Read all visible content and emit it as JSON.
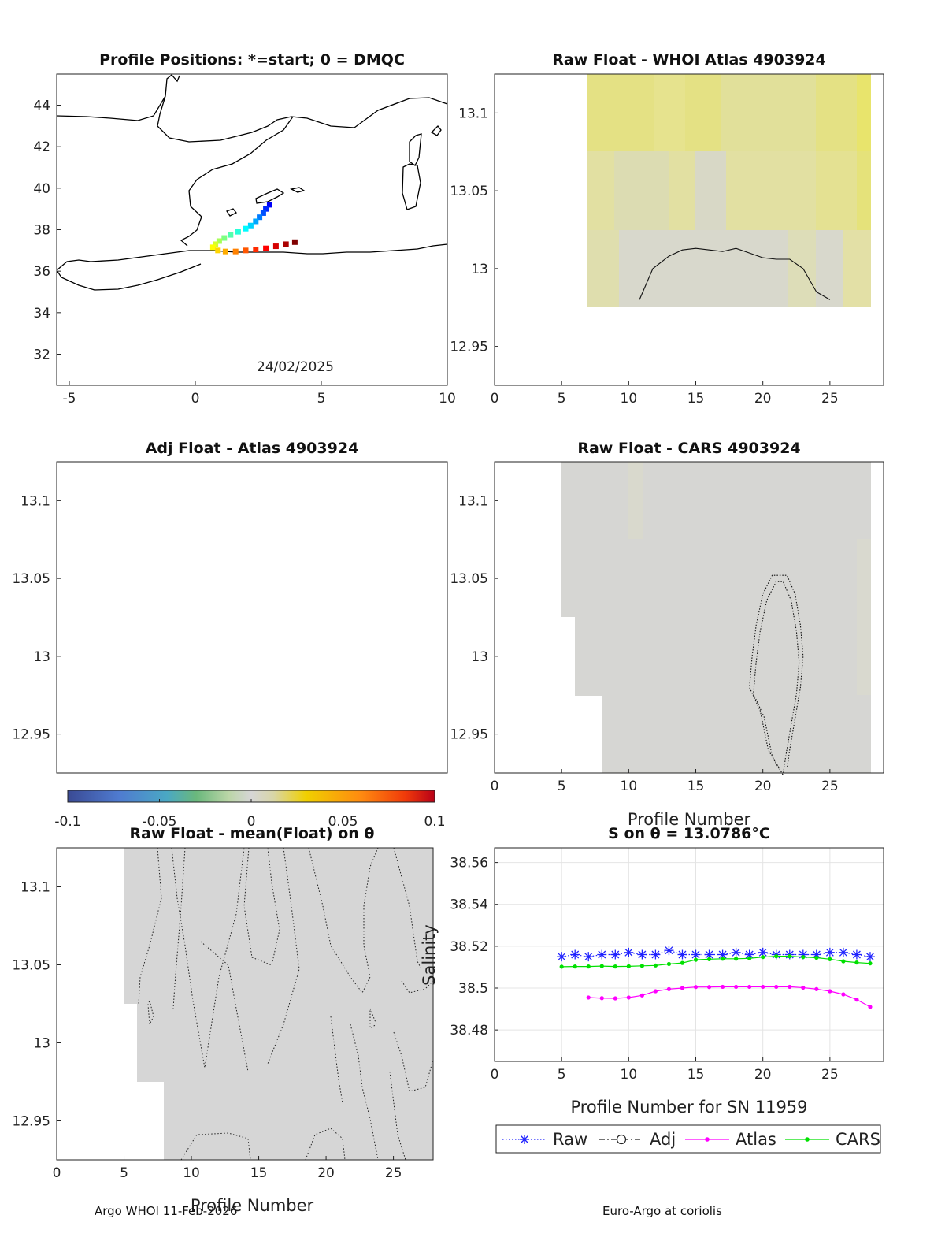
{
  "footer": {
    "left": "Argo WHOI 11-Feb-2026",
    "right": "Euro-Argo at coriolis"
  },
  "chart_data": [
    {
      "id": "positions",
      "type": "scatter",
      "title": "Profile Positions: *=start; 0 = DMQC",
      "annotation": "24/02/2025",
      "xlim": [
        -5.5,
        10
      ],
      "ylim": [
        30.5,
        45.5
      ],
      "xticks": [
        "-5",
        "0",
        "5",
        "10"
      ],
      "xtick_values": [
        -5,
        0,
        5,
        10
      ],
      "yticks": [
        "32",
        "34",
        "36",
        "38",
        "40",
        "42",
        "44"
      ],
      "ytick_values": [
        32,
        34,
        36,
        38,
        40,
        42,
        44
      ],
      "points": [
        [
          2.95,
          39.2
        ],
        [
          2.8,
          39.0
        ],
        [
          2.7,
          38.8
        ],
        [
          2.55,
          38.6
        ],
        [
          2.4,
          38.4
        ],
        [
          2.2,
          38.2
        ],
        [
          2.0,
          38.05
        ],
        [
          1.7,
          37.9
        ],
        [
          1.4,
          37.75
        ],
        [
          1.15,
          37.6
        ],
        [
          0.95,
          37.45
        ],
        [
          0.8,
          37.3
        ],
        [
          0.7,
          37.15
        ],
        [
          0.9,
          37.0
        ],
        [
          1.2,
          36.95
        ],
        [
          1.6,
          36.95
        ],
        [
          2.0,
          37.0
        ],
        [
          2.4,
          37.05
        ],
        [
          2.8,
          37.1
        ],
        [
          3.2,
          37.2
        ],
        [
          3.6,
          37.3
        ],
        [
          3.95,
          37.4
        ]
      ]
    },
    {
      "id": "raw-whoi",
      "type": "heatmap",
      "title": "Raw Float - WHOI Atlas  4903924",
      "xlim": [
        0,
        29
      ],
      "ylim": [
        12.925,
        13.125
      ],
      "xticks": [
        "0",
        "5",
        "10",
        "15",
        "20",
        "25"
      ],
      "xtick_values": [
        0,
        5,
        10,
        15,
        20,
        25
      ],
      "yticks": [
        "13.1",
        "13.05",
        "13",
        "12.95"
      ],
      "ytick_values": [
        13.1,
        13.05,
        13.0,
        12.95
      ],
      "contour": [
        [
          10.8,
          12.98
        ],
        [
          11.8,
          13.0
        ],
        [
          13,
          13.008
        ],
        [
          14,
          13.012
        ],
        [
          15,
          13.013
        ],
        [
          16,
          13.012
        ],
        [
          17,
          13.011
        ],
        [
          18,
          13.013
        ],
        [
          19,
          13.01
        ],
        [
          20,
          13.007
        ],
        [
          21,
          13.006
        ],
        [
          22,
          13.006
        ],
        [
          23,
          13.0
        ],
        [
          24,
          12.985
        ],
        [
          25,
          12.98
        ]
      ]
    },
    {
      "id": "adj-atlas",
      "type": "heatmap",
      "title": "Adj Float - Atlas  4903924",
      "ylim": [
        12.925,
        13.125
      ],
      "yticks": [
        "13.1",
        "13.05",
        "13",
        "12.95"
      ],
      "ytick_values": [
        13.1,
        13.05,
        13.0,
        12.95
      ],
      "colorbar": {
        "range": [
          -0.1,
          0.1
        ],
        "ticks": [
          "-0.1",
          "-0.05",
          "0",
          "0.05",
          "0.1"
        ],
        "tick_values": [
          -0.1,
          -0.05,
          0,
          0.05,
          0.1
        ]
      }
    },
    {
      "id": "raw-cars",
      "type": "heatmap",
      "title": "Raw Float - CARS  4903924",
      "xlabel": "Profile Number",
      "xlim": [
        0,
        29
      ],
      "ylim": [
        12.925,
        13.125
      ],
      "xticks": [
        "0",
        "5",
        "10",
        "15",
        "20",
        "25"
      ],
      "xtick_values": [
        0,
        5,
        10,
        15,
        20,
        25
      ],
      "yticks": [
        "13.1",
        "13.05",
        "13",
        "12.95"
      ],
      "ytick_values": [
        13.1,
        13.05,
        13.0,
        12.95
      ],
      "contour": [
        [
          21.2,
          12.928
        ],
        [
          20.4,
          12.94
        ],
        [
          19.8,
          12.965
        ],
        [
          19.0,
          12.98
        ],
        [
          19.2,
          13.0
        ],
        [
          19.5,
          13.02
        ],
        [
          20.0,
          13.04
        ],
        [
          20.7,
          13.052
        ],
        [
          21.8,
          13.052
        ],
        [
          22.4,
          13.04
        ],
        [
          22.8,
          13.02
        ],
        [
          23.0,
          13.0
        ],
        [
          22.8,
          12.98
        ],
        [
          22.4,
          12.96
        ],
        [
          22.0,
          12.94
        ],
        [
          21.8,
          12.928
        ]
      ]
    },
    {
      "id": "raw-mean",
      "type": "heatmap",
      "title": "Raw Float - mean(Float) on θ",
      "xlabel": "Profile Number",
      "xlim": [
        0,
        29
      ],
      "ylim": [
        12.925,
        13.125
      ],
      "xticks": [
        "0",
        "5",
        "10",
        "15",
        "20",
        "25"
      ],
      "xtick_values": [
        0,
        5,
        10,
        15,
        20,
        25
      ],
      "yticks": [
        "13.1",
        "13.05",
        "13",
        "12.95"
      ],
      "ytick_values": [
        13.1,
        13.05,
        13.0,
        12.95
      ]
    },
    {
      "id": "s-on-theta",
      "type": "line",
      "title": "S on θ = 13.0786°C",
      "xlabel": "Profile Number for SN 11959",
      "ylabel": "Salinity",
      "xlim": [
        0,
        29
      ],
      "ylim": [
        38.465,
        38.567
      ],
      "grid": true,
      "legend_placement": "bottom",
      "xticks": [
        "0",
        "5",
        "10",
        "15",
        "20",
        "25"
      ],
      "xtick_values": [
        0,
        5,
        10,
        15,
        20,
        25
      ],
      "yticks": [
        "38.56",
        "38.54",
        "38.52",
        "38.5",
        "38.48"
      ],
      "ytick_values": [
        38.56,
        38.54,
        38.52,
        38.5,
        38.48
      ],
      "series": [
        {
          "name": "Raw",
          "color": "#1f22ff",
          "marker": "asterisk",
          "x": [
            5,
            6,
            7,
            8,
            9,
            10,
            11,
            12,
            13,
            14,
            15,
            16,
            17,
            18,
            19,
            20,
            21,
            22,
            23,
            24,
            25,
            26,
            27,
            28
          ],
          "y": [
            38.515,
            38.516,
            38.515,
            38.516,
            38.516,
            38.517,
            38.516,
            38.516,
            38.518,
            38.516,
            38.516,
            38.516,
            38.516,
            38.517,
            38.516,
            38.517,
            38.516,
            38.516,
            38.516,
            38.516,
            38.517,
            38.517,
            38.516,
            38.515
          ]
        },
        {
          "name": "Adj",
          "color": "#222222",
          "marker": "circle",
          "x": [],
          "y": []
        },
        {
          "name": "Atlas",
          "color": "#ff00ff",
          "marker": "dot",
          "x": [
            7,
            8,
            9,
            10,
            11,
            12,
            13,
            14,
            15,
            16,
            17,
            18,
            19,
            20,
            21,
            22,
            23,
            24,
            25,
            26,
            27,
            28
          ],
          "y": [
            38.4955,
            38.4952,
            38.4951,
            38.4955,
            38.4965,
            38.4985,
            38.4995,
            38.5,
            38.5005,
            38.5005,
            38.5006,
            38.5006,
            38.5006,
            38.5006,
            38.5006,
            38.5006,
            38.5002,
            38.4995,
            38.4985,
            38.497,
            38.4945,
            38.491
          ]
        },
        {
          "name": "CARS",
          "color": "#00e000",
          "marker": "dot",
          "x": [
            5,
            6,
            7,
            8,
            9,
            10,
            11,
            12,
            13,
            14,
            15,
            16,
            17,
            18,
            19,
            20,
            21,
            22,
            23,
            24,
            25,
            26,
            27,
            28
          ],
          "y": [
            38.5102,
            38.5103,
            38.5103,
            38.5105,
            38.5103,
            38.5104,
            38.5106,
            38.5108,
            38.5115,
            38.512,
            38.5135,
            38.5138,
            38.514,
            38.514,
            38.5142,
            38.5148,
            38.5152,
            38.5152,
            38.5148,
            38.5145,
            38.5138,
            38.5128,
            38.5122,
            38.5118
          ]
        }
      ]
    }
  ]
}
